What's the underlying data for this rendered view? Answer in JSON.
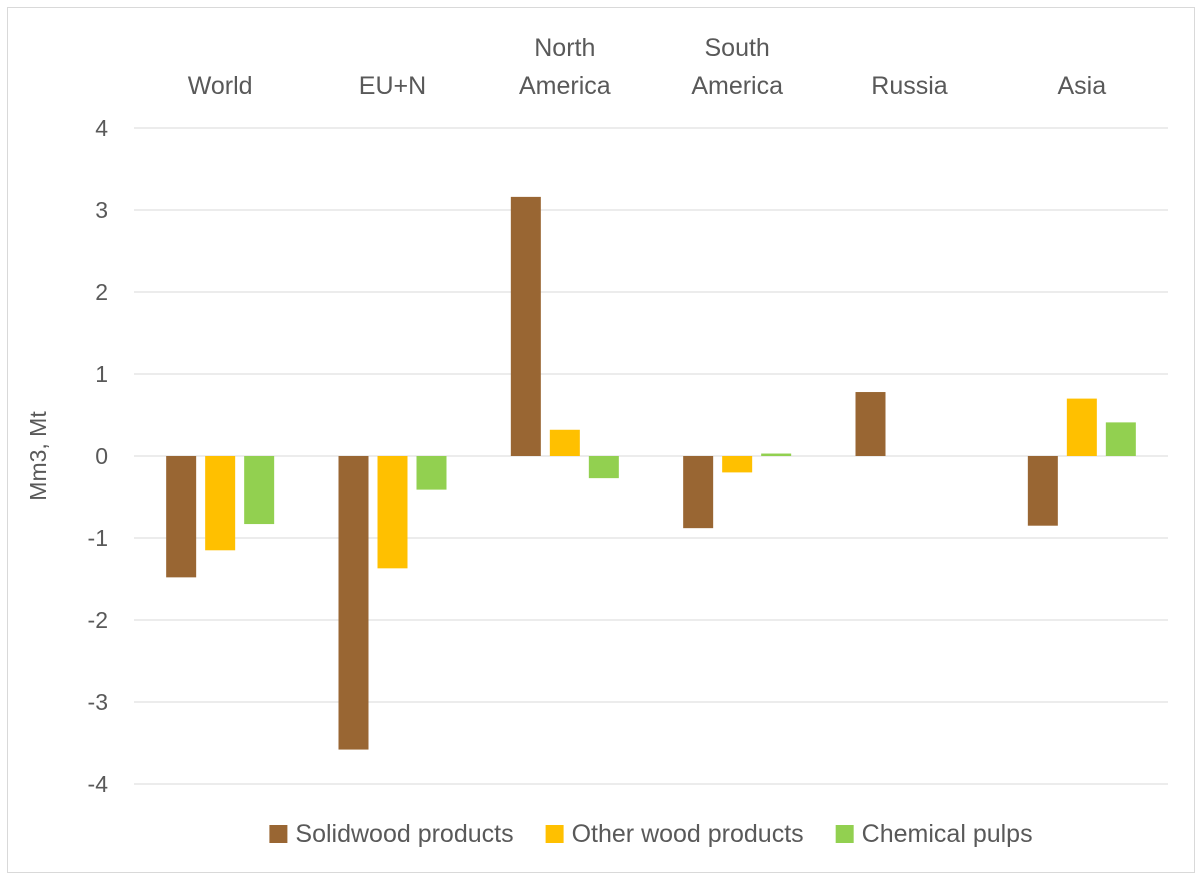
{
  "chart_data": {
    "type": "bar",
    "ylabel": "Mm3, Mt",
    "ylim": [
      -4,
      4
    ],
    "yticks": [
      4,
      3,
      2,
      1,
      0,
      -1,
      -2,
      -3,
      -4
    ],
    "grid": true,
    "legend_position": "bottom",
    "categories": [
      [
        "World"
      ],
      [
        "EU+N"
      ],
      [
        "North",
        "America"
      ],
      [
        "South",
        "America"
      ],
      [
        "Russia"
      ],
      [
        "Asia"
      ]
    ],
    "series": [
      {
        "name": "Solidwood products",
        "color": "#996633",
        "values": [
          -1.48,
          -3.58,
          3.16,
          -0.88,
          0.78,
          -0.85
        ]
      },
      {
        "name": "Other wood products",
        "color": "#FFC000",
        "values": [
          -1.15,
          -1.37,
          0.32,
          -0.2,
          0.0,
          0.7
        ]
      },
      {
        "name": "Chemical pulps",
        "color": "#92D050",
        "values": [
          -0.83,
          -0.41,
          -0.27,
          0.03,
          0.0,
          0.41
        ]
      }
    ]
  }
}
